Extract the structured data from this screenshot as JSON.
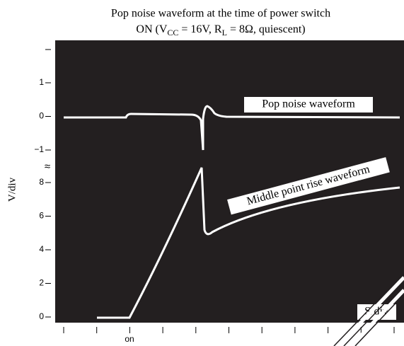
{
  "figure": {
    "title": {
      "line1": "Pop noise waveform at the time of power switch",
      "line2": [
        "ON (V",
        "CC",
        " = 16V, R",
        "L",
        " = 8Ω, quiescent)"
      ]
    },
    "y_axis_label": "V/div",
    "x_axis_label": "S/div",
    "y_tick_labels_upper": [
      "1",
      "0",
      "−1"
    ],
    "axis_break": "≈",
    "y_tick_labels_lower": [
      "8",
      "6",
      "4",
      "2",
      "0"
    ],
    "x_marker": "on",
    "annotations": [
      "Pop noise waveform",
      "Middle point rise waveform"
    ]
  }
}
